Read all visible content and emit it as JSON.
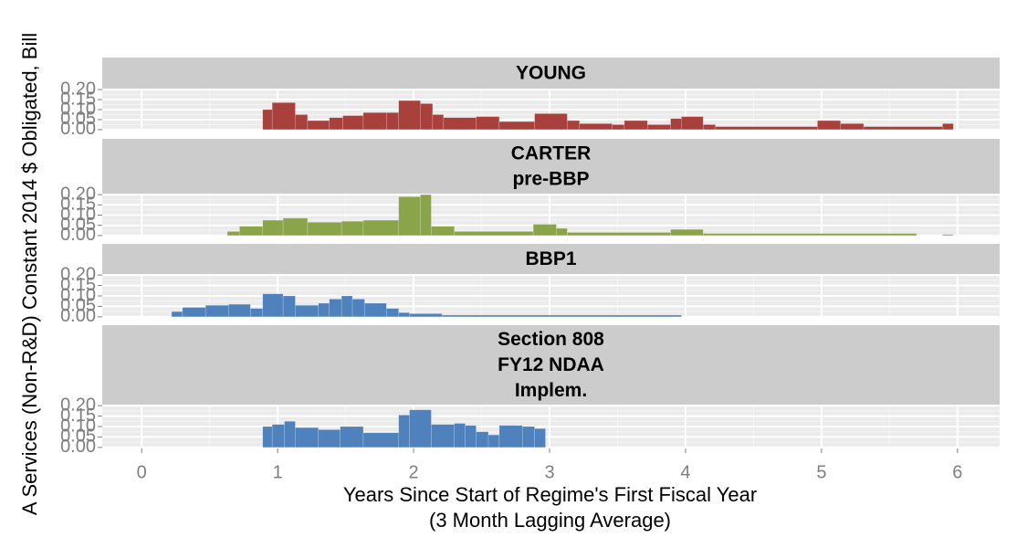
{
  "chart_data": [
    {
      "type": "histogram",
      "title": [
        "YOUNG"
      ],
      "color": "#a9403c",
      "ylabel": "A Services (Non-R&D) Constant 2014 $ Obligated, Bill",
      "bins": [
        0.89,
        0.96,
        1.13,
        1.22,
        1.38,
        1.48,
        1.63,
        1.8,
        1.89,
        2.05,
        2.14,
        2.22,
        2.46,
        2.63,
        2.89,
        3.13,
        3.22,
        3.46,
        3.55,
        3.72,
        3.89,
        3.97,
        4.13,
        4.22,
        4.97,
        5.14,
        5.31,
        5.89,
        5.97
      ],
      "values": [
        0.1,
        0.135,
        0.075,
        0.045,
        0.06,
        0.07,
        0.085,
        0.085,
        0.145,
        0.13,
        0.075,
        0.06,
        0.065,
        0.04,
        0.08,
        0.045,
        0.03,
        0.025,
        0.045,
        0.025,
        0.055,
        0.065,
        0.025,
        0.015,
        0.045,
        0.03,
        0.015,
        0.03
      ],
      "xlim": [
        -0.29,
        6.31
      ],
      "ylim": [
        -0.005,
        0.205
      ],
      "yticks": [
        {
          "value": 0,
          "label": "0.00"
        },
        {
          "value": 0.05,
          "label": "0.05"
        },
        {
          "value": 0.1,
          "label": "0.10"
        },
        {
          "value": 0.15,
          "label": "0.15"
        },
        {
          "value": 0.2,
          "label": "0.20"
        }
      ]
    },
    {
      "type": "histogram",
      "title": [
        "CARTER",
        "pre-BBP"
      ],
      "color": "#8aa44a",
      "bins": [
        0.63,
        0.72,
        0.89,
        1.04,
        1.22,
        1.47,
        1.63,
        1.89,
        2.05,
        2.13,
        2.3,
        2.88,
        3.05,
        3.13,
        3.89,
        4.13,
        5.7,
        5.89,
        5.97
      ],
      "values": [
        0.02,
        0.045,
        0.075,
        0.085,
        0.065,
        0.07,
        0.075,
        0.19,
        0.2,
        0.045,
        0.02,
        0.055,
        0.035,
        0.015,
        0.03,
        0.01,
        0,
        0.005
      ],
      "xlim": [
        -0.29,
        6.31
      ],
      "ylim": [
        -0.005,
        0.205
      ],
      "yticks": [
        {
          "value": 0,
          "label": "0.00"
        },
        {
          "value": 0.05,
          "label": "0.05"
        },
        {
          "value": 0.1,
          "label": "0.10"
        },
        {
          "value": 0.15,
          "label": "0.15"
        },
        {
          "value": 0.2,
          "label": "0.20"
        }
      ]
    },
    {
      "type": "histogram",
      "title": [
        "BBP1"
      ],
      "color": "#4f81bd",
      "bins": [
        0.22,
        0.3,
        0.47,
        0.64,
        0.8,
        0.89,
        1.04,
        1.13,
        1.3,
        1.38,
        1.47,
        1.55,
        1.64,
        1.8,
        1.89,
        1.97,
        2.21,
        3.97
      ],
      "values": [
        0.025,
        0.045,
        0.055,
        0.06,
        0.04,
        0.11,
        0.1,
        0.055,
        0.065,
        0.085,
        0.1,
        0.085,
        0.065,
        0.04,
        0.02,
        0.015,
        0.008
      ],
      "xlim": [
        -0.29,
        6.31
      ],
      "ylim": [
        -0.005,
        0.205
      ],
      "yticks": [
        {
          "value": 0,
          "label": "0.00"
        },
        {
          "value": 0.05,
          "label": "0.05"
        },
        {
          "value": 0.1,
          "label": "0.10"
        },
        {
          "value": 0.15,
          "label": "0.15"
        },
        {
          "value": 0.2,
          "label": "0.20"
        }
      ]
    },
    {
      "type": "histogram",
      "title": [
        "Section 808",
        "FY12 NDAA",
        "Implem."
      ],
      "color": "#4f81bd",
      "bins": [
        0.89,
        0.96,
        1.05,
        1.13,
        1.3,
        1.46,
        1.63,
        1.89,
        1.97,
        2.13,
        2.3,
        2.38,
        2.46,
        2.55,
        2.63,
        2.8,
        2.89,
        2.97
      ],
      "values": [
        0.1,
        0.11,
        0.125,
        0.095,
        0.085,
        0.1,
        0.07,
        0.155,
        0.18,
        0.11,
        0.115,
        0.105,
        0.075,
        0.06,
        0.105,
        0.1,
        0.09
      ],
      "xlim": [
        -0.29,
        6.31
      ],
      "ylim": [
        -0.005,
        0.205
      ],
      "yticks": [
        {
          "value": 0,
          "label": "0.00"
        },
        {
          "value": 0.05,
          "label": "0.05"
        },
        {
          "value": 0.1,
          "label": "0.10"
        },
        {
          "value": 0.15,
          "label": "0.15"
        },
        {
          "value": 0.2,
          "label": "0.20"
        }
      ],
      "xticks": [
        0,
        1,
        2,
        3,
        4,
        5,
        6
      ],
      "xlabel": [
        "Years Since Start of Regime's First Fiscal Year",
        "(3 Month Lagging Average)"
      ]
    }
  ]
}
